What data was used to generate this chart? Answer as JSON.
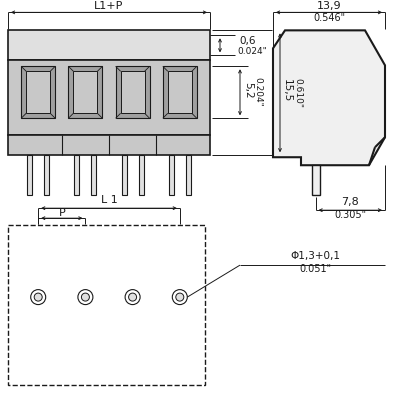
{
  "bg_color": "#ffffff",
  "line_color": "#1a1a1a",
  "dim_color": "#1a1a1a",
  "fill_light": "#e0e0e0",
  "fill_med": "#c8c8c8",
  "fill_dark": "#a0a0a0",
  "fig_width": 3.95,
  "fig_height": 4.0,
  "dims": {
    "L1P_label": "L1+P",
    "L1_label": "L 1",
    "P_label": "P",
    "d06": "0,6",
    "d06_inch": "0.024\"",
    "d52": "5,2",
    "d52_inch": "0.204\"",
    "d155": "15,5",
    "d155_inch": "0.610\"",
    "d139": "13,9",
    "d139_inch": "0.546\"",
    "d78": "7,8",
    "d78_inch": "0.305\"",
    "hole": "Φ1,3+0,1",
    "hole_inch": "0.051\""
  }
}
